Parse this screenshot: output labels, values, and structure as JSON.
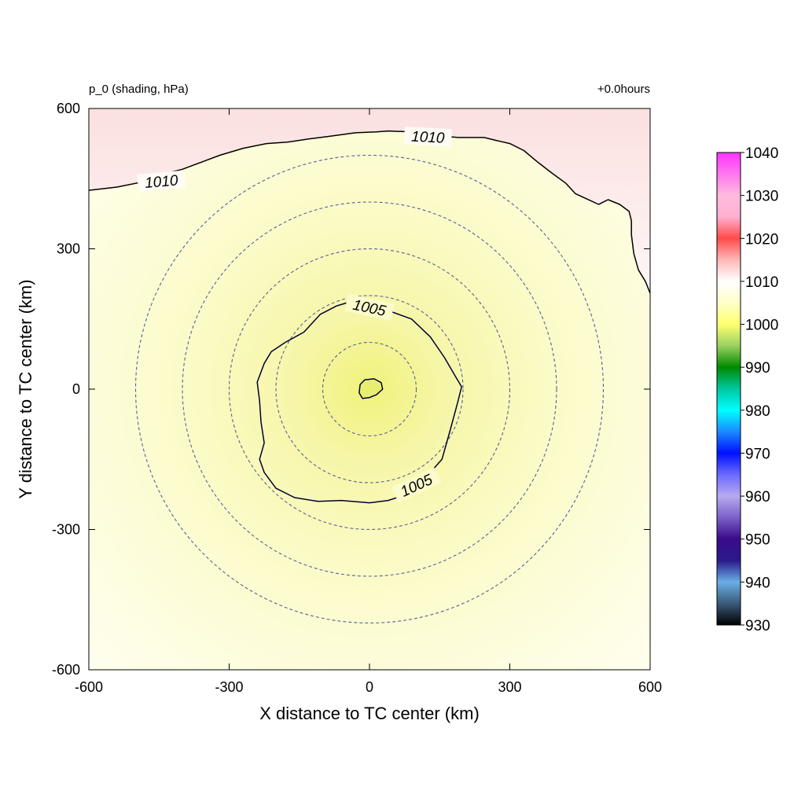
{
  "chart_data": {
    "type": "heatmap",
    "title_left": "p_0 (shading, hPa)",
    "title_right": "+0.0hours",
    "xlabel": "X distance to TC center (km)",
    "ylabel": "Y distance to TC center (km)",
    "xlim": [
      -600,
      600
    ],
    "ylim": [
      -600,
      600
    ],
    "x_ticks": [
      -600,
      -300,
      0,
      300,
      600
    ],
    "y_ticks": [
      -600,
      -300,
      0,
      300,
      600
    ],
    "grid": false,
    "range_rings_km": [
      100,
      200,
      300,
      400,
      500
    ],
    "colorbar": {
      "ticks": [
        930,
        940,
        950,
        960,
        970,
        980,
        990,
        1000,
        1010,
        1020,
        1030,
        1040
      ],
      "stops": [
        {
          "value": 930,
          "color": "#000000"
        },
        {
          "value": 935,
          "color": "#3a5a7a"
        },
        {
          "value": 940,
          "color": "#6aaee6"
        },
        {
          "value": 945,
          "color": "#2a1a8a"
        },
        {
          "value": 950,
          "color": "#3a0a8a"
        },
        {
          "value": 955,
          "color": "#7a60c8"
        },
        {
          "value": 960,
          "color": "#b8aaf0"
        },
        {
          "value": 965,
          "color": "#6a6aff"
        },
        {
          "value": 970,
          "color": "#0010ff"
        },
        {
          "value": 975,
          "color": "#1a8aff"
        },
        {
          "value": 980,
          "color": "#00ffff"
        },
        {
          "value": 985,
          "color": "#00c8a0"
        },
        {
          "value": 990,
          "color": "#008a00"
        },
        {
          "value": 995,
          "color": "#9ad060"
        },
        {
          "value": 1000,
          "color": "#ffff70"
        },
        {
          "value": 1005,
          "color": "#ffffc8"
        },
        {
          "value": 1010,
          "color": "#ffffff"
        },
        {
          "value": 1015,
          "color": "#ffb8b8"
        },
        {
          "value": 1020,
          "color": "#ff4a4a"
        },
        {
          "value": 1025,
          "color": "#ffb0d0"
        },
        {
          "value": 1030,
          "color": "#ffbbdd"
        },
        {
          "value": 1035,
          "color": "#ff77ee"
        },
        {
          "value": 1040,
          "color": "#ff33ff"
        }
      ]
    },
    "contour_labels": [
      {
        "text": "1010",
        "x": -445,
        "y": 445,
        "angle": -5
      },
      {
        "text": "1010",
        "x": 125,
        "y": 540,
        "angle": 3
      },
      {
        "text": "1005",
        "x": 0,
        "y": 175,
        "angle": 12
      },
      {
        "text": "1005",
        "x": 100,
        "y": -205,
        "angle": -25
      }
    ],
    "contours": [
      {
        "level": 1010,
        "points": [
          [
            -600,
            425
          ],
          [
            -540,
            432
          ],
          [
            -475,
            445
          ],
          [
            -440,
            460
          ],
          [
            -400,
            470
          ],
          [
            -360,
            485
          ],
          [
            -320,
            500
          ],
          [
            -270,
            515
          ],
          [
            -220,
            525
          ],
          [
            -175,
            528
          ],
          [
            -130,
            535
          ],
          [
            -90,
            540
          ],
          [
            -30,
            548
          ],
          [
            15,
            550
          ],
          [
            40,
            552
          ],
          [
            90,
            550
          ],
          [
            140,
            542
          ],
          [
            190,
            538
          ],
          [
            245,
            538
          ],
          [
            270,
            532
          ],
          [
            300,
            525
          ],
          [
            330,
            510
          ],
          [
            360,
            485
          ],
          [
            390,
            462
          ],
          [
            420,
            440
          ],
          [
            440,
            418
          ],
          [
            490,
            395
          ],
          [
            510,
            405
          ],
          [
            535,
            395
          ],
          [
            555,
            380
          ],
          [
            560,
            360
          ],
          [
            560,
            330
          ],
          [
            565,
            290
          ],
          [
            575,
            255
          ],
          [
            590,
            230
          ],
          [
            600,
            205
          ]
        ]
      },
      {
        "level": 1005,
        "closed": true,
        "points": [
          [
            -30,
            190
          ],
          [
            0,
            182
          ],
          [
            40,
            168
          ],
          [
            90,
            150
          ],
          [
            130,
            112
          ],
          [
            160,
            68
          ],
          [
            185,
            25
          ],
          [
            197,
            5
          ],
          [
            188,
            -30
          ],
          [
            172,
            -90
          ],
          [
            155,
            -150
          ],
          [
            115,
            -195
          ],
          [
            80,
            -225
          ],
          [
            40,
            -238
          ],
          [
            0,
            -243
          ],
          [
            -60,
            -238
          ],
          [
            -110,
            -240
          ],
          [
            -160,
            -232
          ],
          [
            -200,
            -212
          ],
          [
            -225,
            -178
          ],
          [
            -235,
            -150
          ],
          [
            -225,
            -115
          ],
          [
            -232,
            -70
          ],
          [
            -235,
            -25
          ],
          [
            -240,
            15
          ],
          [
            -225,
            55
          ],
          [
            -210,
            80
          ],
          [
            -180,
            100
          ],
          [
            -140,
            122
          ],
          [
            -105,
            160
          ],
          [
            -70,
            178
          ]
        ]
      },
      {
        "level": 1000,
        "closed": true,
        "points": [
          [
            -20,
            10
          ],
          [
            -10,
            20
          ],
          [
            10,
            22
          ],
          [
            25,
            14
          ],
          [
            28,
            0
          ],
          [
            15,
            -12
          ],
          [
            0,
            -18
          ],
          [
            -15,
            -20
          ],
          [
            -22,
            -8
          ]
        ]
      }
    ]
  }
}
